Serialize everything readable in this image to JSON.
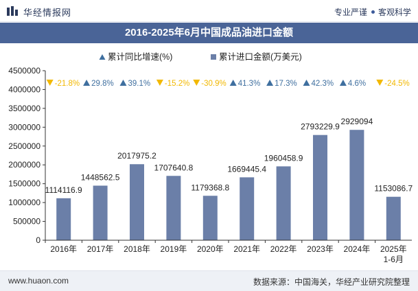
{
  "header": {
    "brand": "华经情报网",
    "slogan_a": "专业严谨",
    "slogan_b": "客观科学"
  },
  "footer": {
    "website": "www.huaon.com",
    "source": "数据来源：中国海关，华经产业研究院整理"
  },
  "colors": {
    "bar": "#6b7fa8",
    "triangle_up": "#3f6f9f",
    "triangle_down": "#f2b800",
    "titlebar": "#4a6497"
  },
  "chart_data": {
    "type": "bar",
    "title": "2016-2025年6月中国成品油进口金额",
    "legend": {
      "growth": "累计同比增速(%)",
      "amount": "累计进口金额(万美元)"
    },
    "categories": [
      "2016年",
      "2017年",
      "2018年",
      "2019年",
      "2020年",
      "2021年",
      "2022年",
      "2023年",
      "2024年",
      "2025年\n1-6月"
    ],
    "category_lines": [
      [
        "2016年"
      ],
      [
        "2017年"
      ],
      [
        "2018年"
      ],
      [
        "2019年"
      ],
      [
        "2020年"
      ],
      [
        "2021年"
      ],
      [
        "2022年"
      ],
      [
        "2023年"
      ],
      [
        "2024年"
      ],
      [
        "2025年",
        "1-6月"
      ]
    ],
    "series": [
      {
        "name": "累计进口金额(万美元)",
        "values": [
          1114116.9,
          1448562.5,
          2017975.2,
          1707640.8,
          1179368.8,
          1669445.4,
          1960458.9,
          2793229.9,
          2929094,
          1153086.7
        ],
        "labels": [
          "1114116.9",
          "1448562.5",
          "2017975.2",
          "1707640.8",
          "1179368.8",
          "1669445.4",
          "1960458.9",
          "2793229.9",
          "2929094",
          "1153086.7"
        ]
      },
      {
        "name": "累计同比增速(%)",
        "values": [
          -21.8,
          29.8,
          39.1,
          -15.2,
          -30.9,
          41.3,
          17.3,
          42.3,
          4.6,
          -24.5
        ],
        "labels": [
          "-21.8%",
          "29.8%",
          "39.1%",
          "-15.2%",
          "-30.9%",
          "41.3%",
          "17.3%",
          "42.3%",
          "4.6%",
          "-24.5%"
        ]
      }
    ],
    "ylim": [
      0,
      4500000
    ],
    "yticks": [
      0,
      500000,
      1000000,
      1500000,
      2000000,
      2500000,
      3000000,
      3500000,
      4000000,
      4500000
    ],
    "ytick_labels": [
      "0",
      "500000",
      "1000000",
      "1500000",
      "2000000",
      "2500000",
      "3000000",
      "3500000",
      "4000000",
      "4500000"
    ]
  }
}
